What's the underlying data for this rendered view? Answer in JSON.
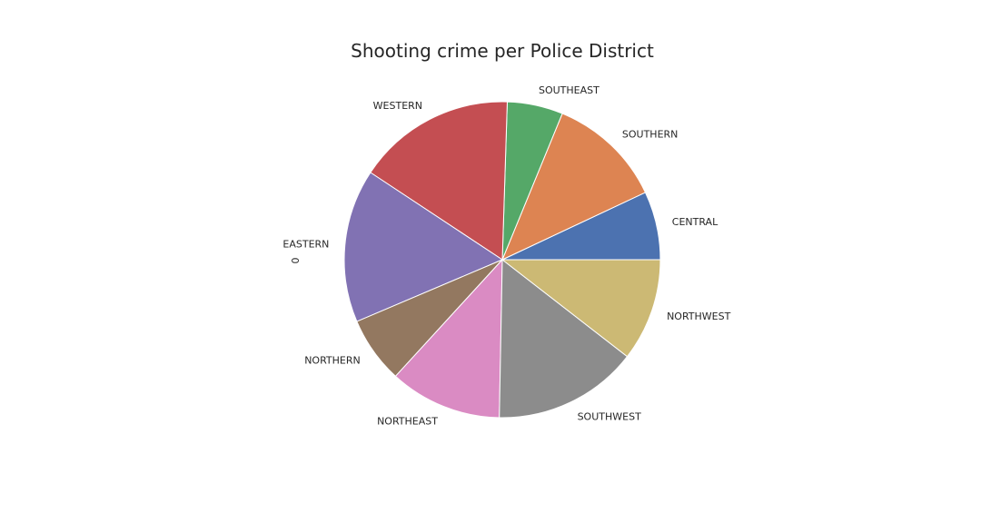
{
  "chart_data": {
    "type": "pie",
    "title": "Shooting crime per Police District",
    "ylabel": "0",
    "start_angle_deg": 0,
    "direction": "counterclockwise",
    "categories": [
      "CENTRAL",
      "SOUTHERN",
      "SOUTHEAST",
      "WESTERN",
      "EASTERN",
      "NORTHERN",
      "NORTHEAST",
      "SOUTHWEST",
      "NORTHWEST"
    ],
    "values": [
      7.0,
      11.8,
      5.7,
      16.2,
      15.7,
      6.8,
      11.5,
      14.8,
      10.5
    ],
    "colors": [
      "#4c72b0",
      "#dd8452",
      "#55a868",
      "#c44e52",
      "#8172b3",
      "#937860",
      "#da8bc3",
      "#8c8c8c",
      "#ccb974"
    ]
  }
}
